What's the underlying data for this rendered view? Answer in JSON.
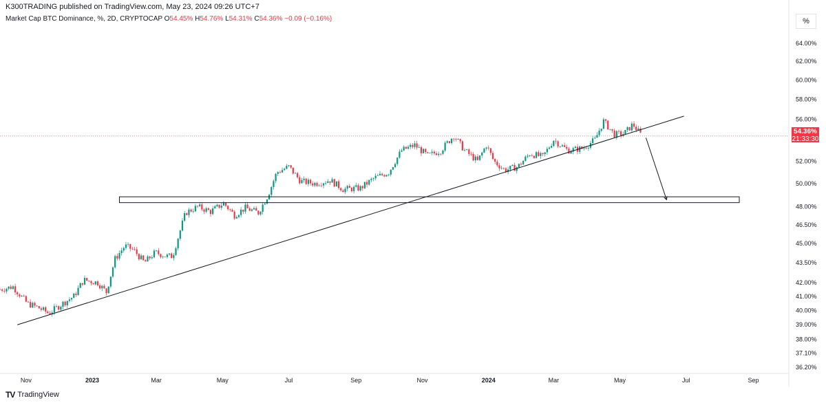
{
  "header": {
    "published": "K300TRADING published on TradingView.com, May 23, 2024 09:26 UTC+7"
  },
  "legend": {
    "symbol": "Market Cap BTC Dominance, %, 2D, CRYPTOCAP",
    "o_label": "O",
    "o_value": "54.45%",
    "h_label": "H",
    "h_value": "54.76%",
    "l_label": "L",
    "l_value": "54.31%",
    "c_label": "C",
    "c_value": "54.36%",
    "change": "−0.09 (−0.16%)"
  },
  "scale_button": {
    "label": "%"
  },
  "price_tag": {
    "price": "54.36%",
    "countdown": "21:33:30"
  },
  "footer": {
    "logo": "TV",
    "brand": "TradingView"
  },
  "colors": {
    "up": "#089981",
    "down": "#f23645",
    "line": "#131722",
    "last_price": "#f23645"
  },
  "chart_data": {
    "type": "candlestick",
    "title": "",
    "xlabel": "",
    "ylabel": "",
    "ylim": [
      35.8,
      65.8
    ],
    "y_scale": "log",
    "grid": false,
    "y_ticks": [
      "64.00%",
      "62.00%",
      "60.00%",
      "58.00%",
      "56.00%",
      "52.00%",
      "50.00%",
      "48.00%",
      "46.50%",
      "45.00%",
      "43.50%",
      "42.00%",
      "41.00%",
      "40.00%",
      "39.00%",
      "38.00%",
      "37.10%",
      "36.20%"
    ],
    "y_tick_values": [
      64,
      62,
      60,
      58,
      56,
      52,
      50,
      48,
      46.5,
      45,
      43.5,
      42,
      41,
      40,
      39,
      38,
      37.1,
      36.2
    ],
    "x_ticks": [
      {
        "label": "Nov",
        "date": "2022-11-01"
      },
      {
        "label": "2023",
        "date": "2023-01-01"
      },
      {
        "label": "Mar",
        "date": "2023-03-01"
      },
      {
        "label": "May",
        "date": "2023-05-01"
      },
      {
        "label": "Jul",
        "date": "2023-07-01"
      },
      {
        "label": "Sep",
        "date": "2023-09-01"
      },
      {
        "label": "Nov",
        "date": "2023-11-01"
      },
      {
        "label": "2024",
        "date": "2024-01-01"
      },
      {
        "label": "Mar",
        "date": "2024-03-01"
      },
      {
        "label": "May",
        "date": "2024-05-01"
      },
      {
        "label": "Jul",
        "date": "2024-07-01"
      },
      {
        "label": "Sep",
        "date": "2024-09-01"
      }
    ],
    "x_range": [
      "2022-10-08",
      "2024-10-03"
    ],
    "last_price": 54.36,
    "price_path": [
      [
        "2022-10-08",
        41.5
      ],
      [
        "2022-10-20",
        41.7
      ],
      [
        "2022-11-02",
        40.5
      ],
      [
        "2022-11-12",
        40.2
      ],
      [
        "2022-11-22",
        39.8
      ],
      [
        "2022-12-05",
        40.5
      ],
      [
        "2022-12-15",
        41.0
      ],
      [
        "2022-12-24",
        42.2
      ],
      [
        "2023-01-06",
        42.0
      ],
      [
        "2023-01-14",
        41.3
      ],
      [
        "2023-01-22",
        43.8
      ],
      [
        "2023-01-31",
        44.8
      ],
      [
        "2023-02-08",
        44.5
      ],
      [
        "2023-02-18",
        43.5
      ],
      [
        "2023-02-28",
        44.3
      ],
      [
        "2023-03-10",
        44.0
      ],
      [
        "2023-03-16",
        44.0
      ],
      [
        "2023-03-28",
        47.5
      ],
      [
        "2023-04-08",
        48.0
      ],
      [
        "2023-04-20",
        47.6
      ],
      [
        "2023-05-02",
        48.3
      ],
      [
        "2023-05-12",
        47.3
      ],
      [
        "2023-05-22",
        47.9
      ],
      [
        "2023-06-03",
        47.5
      ],
      [
        "2023-06-12",
        49.0
      ],
      [
        "2023-06-20",
        51.0
      ],
      [
        "2023-07-01",
        51.5
      ],
      [
        "2023-07-12",
        50.2
      ],
      [
        "2023-07-25",
        50.0
      ],
      [
        "2023-08-08",
        50.3
      ],
      [
        "2023-08-20",
        49.5
      ],
      [
        "2023-09-05",
        49.6
      ],
      [
        "2023-09-18",
        50.5
      ],
      [
        "2023-10-01",
        51.0
      ],
      [
        "2023-10-13",
        53.0
      ],
      [
        "2023-10-25",
        53.5
      ],
      [
        "2023-11-06",
        52.5
      ],
      [
        "2023-11-18",
        53.0
      ],
      [
        "2023-11-30",
        54.4
      ],
      [
        "2023-12-10",
        53.0
      ],
      [
        "2023-12-22",
        52.0
      ],
      [
        "2023-12-30",
        53.5
      ],
      [
        "2024-01-06",
        52.0
      ],
      [
        "2024-01-16",
        51.2
      ],
      [
        "2024-01-28",
        51.5
      ],
      [
        "2024-02-08",
        52.7
      ],
      [
        "2024-02-20",
        52.4
      ],
      [
        "2024-03-01",
        54.0
      ],
      [
        "2024-03-14",
        53.0
      ],
      [
        "2024-03-28",
        53.2
      ],
      [
        "2024-04-08",
        54.0
      ],
      [
        "2024-04-16",
        55.8
      ],
      [
        "2024-04-26",
        54.5
      ],
      [
        "2024-05-05",
        54.6
      ],
      [
        "2024-05-13",
        55.5
      ],
      [
        "2024-05-21",
        54.4
      ]
    ],
    "annotations": {
      "trendline": {
        "from": [
          "2022-10-24",
          39.0
        ],
        "to": [
          "2024-06-29",
          56.3
        ]
      },
      "support_zone": {
        "from_date": "2023-01-26",
        "to_date": "2024-08-19",
        "top": 48.85,
        "bottom": 48.35
      },
      "arrow": {
        "from": [
          "2024-05-25",
          54.2
        ],
        "to": [
          "2024-06-13",
          48.6
        ]
      }
    }
  }
}
